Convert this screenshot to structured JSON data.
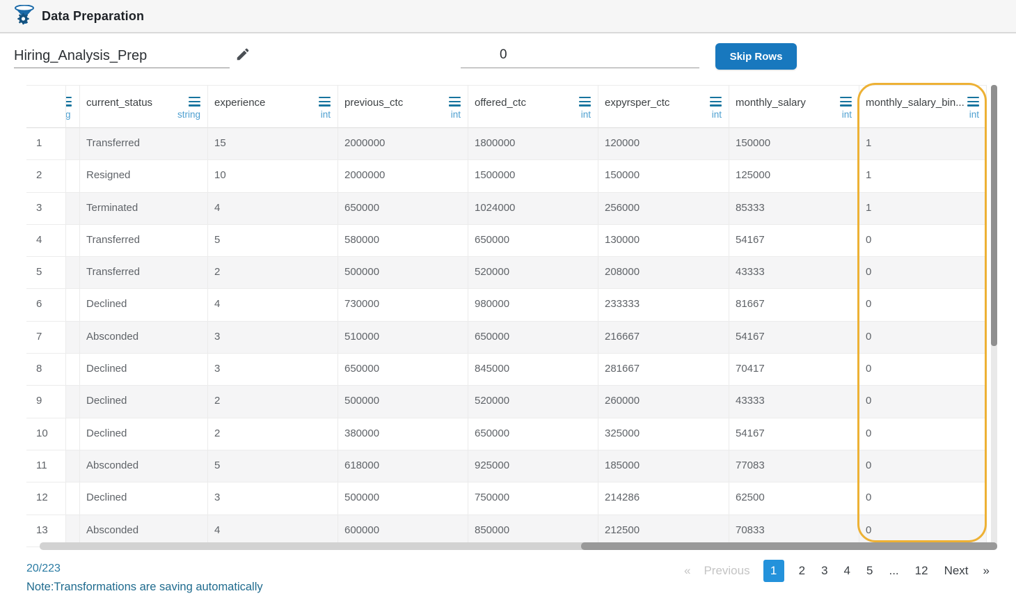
{
  "app": {
    "title": "Data Preparation",
    "logo_icon": "funnel-gear-icon"
  },
  "toolbar": {
    "dataset_name": "Hiring_Analysis_Prep",
    "edit_icon": "pencil-icon",
    "skip_rows_value": "0",
    "skip_rows_button": "Skip Rows"
  },
  "table": {
    "partial_column": {
      "menu_icon": "column-menu-icon",
      "type_tail": "g"
    },
    "columns": [
      {
        "name": "current_status",
        "type": "string",
        "menu_icon": "column-menu-icon",
        "highlighted": false
      },
      {
        "name": "experience",
        "type": "int",
        "menu_icon": "column-menu-icon",
        "highlighted": false
      },
      {
        "name": "previous_ctc",
        "type": "int",
        "menu_icon": "column-menu-icon",
        "highlighted": false
      },
      {
        "name": "offered_ctc",
        "type": "int",
        "menu_icon": "column-menu-icon",
        "highlighted": false
      },
      {
        "name": "expyrsper_ctc",
        "type": "int",
        "menu_icon": "column-menu-icon",
        "highlighted": false
      },
      {
        "name": "monthly_salary",
        "type": "int",
        "menu_icon": "column-menu-icon",
        "highlighted": false
      },
      {
        "name": "monthly_salary_bin...",
        "type": "int",
        "menu_icon": "column-menu-icon",
        "highlighted": true
      }
    ],
    "rows": [
      {
        "index": "1",
        "cells": [
          "Transferred",
          "15",
          "2000000",
          "1800000",
          "120000",
          "150000",
          "1"
        ]
      },
      {
        "index": "2",
        "cells": [
          "Resigned",
          "10",
          "2000000",
          "1500000",
          "150000",
          "125000",
          "1"
        ]
      },
      {
        "index": "3",
        "cells": [
          "Terminated",
          "4",
          "650000",
          "1024000",
          "256000",
          "85333",
          "1"
        ]
      },
      {
        "index": "4",
        "cells": [
          "Transferred",
          "5",
          "580000",
          "650000",
          "130000",
          "54167",
          "0"
        ]
      },
      {
        "index": "5",
        "cells": [
          "Transferred",
          "2",
          "500000",
          "520000",
          "208000",
          "43333",
          "0"
        ]
      },
      {
        "index": "6",
        "cells": [
          "Declined",
          "4",
          "730000",
          "980000",
          "233333",
          "81667",
          "0"
        ]
      },
      {
        "index": "7",
        "cells": [
          "Absconded",
          "3",
          "510000",
          "650000",
          "216667",
          "54167",
          "0"
        ]
      },
      {
        "index": "8",
        "cells": [
          "Declined",
          "3",
          "650000",
          "845000",
          "281667",
          "70417",
          "0"
        ]
      },
      {
        "index": "9",
        "cells": [
          "Declined",
          "2",
          "500000",
          "520000",
          "260000",
          "43333",
          "0"
        ]
      },
      {
        "index": "10",
        "cells": [
          "Declined",
          "2",
          "380000",
          "650000",
          "325000",
          "54167",
          "0"
        ]
      },
      {
        "index": "11",
        "cells": [
          "Absconded",
          "5",
          "618000",
          "925000",
          "185000",
          "77083",
          "0"
        ]
      },
      {
        "index": "12",
        "cells": [
          "Declined",
          "3",
          "500000",
          "750000",
          "214286",
          "62500",
          "0"
        ]
      },
      {
        "index": "13",
        "cells": [
          "Absconded",
          "4",
          "600000",
          "850000",
          "212500",
          "70833",
          "0"
        ]
      }
    ]
  },
  "footer": {
    "row_count": "20/223",
    "note": "Note:Transformations are saving automatically",
    "pagination": {
      "prev_arrow": "«",
      "prev_label": "Previous",
      "pages": [
        "1",
        "2",
        "3",
        "4",
        "5",
        "...",
        "12"
      ],
      "active_page": "1",
      "next_label": "Next",
      "next_arrow": "»"
    }
  },
  "colors": {
    "accent_blue_button": "#1878be",
    "active_page_blue": "#2492db",
    "column_menu_teal": "#17749e",
    "column_type_blue": "#4d9fd0",
    "highlight_orange": "#edb135",
    "footer_teal": "#1f6b8e",
    "row_stripe": "#f5f5f6"
  }
}
